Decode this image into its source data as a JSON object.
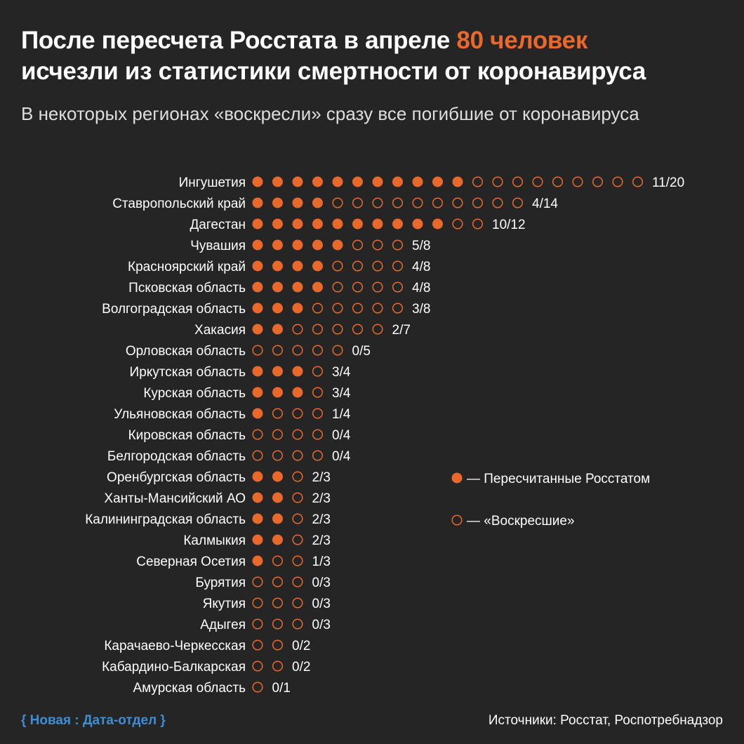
{
  "header": {
    "title_part1": "После пересчета Росстата в апреле ",
    "title_highlight": "80 человек",
    "title_part2": "исчезли из статистики смертности от коронавируса",
    "subtitle": "В некоторых регионах «воскресли» сразу все погибшие от коронавируса"
  },
  "colors": {
    "background": "#252525",
    "accent": "#e8692b",
    "text": "#ffffff",
    "brand": "#3c8fd6"
  },
  "chart_data": {
    "type": "dot-matrix",
    "rows": [
      {
        "region": "Ингушетия",
        "recounted": 11,
        "total": 20,
        "label": "11/20"
      },
      {
        "region": "Ставропольский край",
        "recounted": 4,
        "total": 14,
        "label": "4/14"
      },
      {
        "region": "Дагестан",
        "recounted": 10,
        "total": 12,
        "label": "10/12"
      },
      {
        "region": "Чувашия",
        "recounted": 5,
        "total": 8,
        "label": "5/8"
      },
      {
        "region": "Красноярский край",
        "recounted": 4,
        "total": 8,
        "label": "4/8"
      },
      {
        "region": "Псковская область",
        "recounted": 4,
        "total": 8,
        "label": "4/8"
      },
      {
        "region": "Волгоградская область",
        "recounted": 3,
        "total": 8,
        "label": "3/8"
      },
      {
        "region": "Хакасия",
        "recounted": 2,
        "total": 7,
        "label": "2/7"
      },
      {
        "region": "Орловская область",
        "recounted": 0,
        "total": 5,
        "label": "0/5"
      },
      {
        "region": "Иркутская область",
        "recounted": 3,
        "total": 4,
        "label": "3/4"
      },
      {
        "region": "Курская область",
        "recounted": 3,
        "total": 4,
        "label": "3/4"
      },
      {
        "region": "Ульяновская область",
        "recounted": 1,
        "total": 4,
        "label": "1/4"
      },
      {
        "region": "Кировская область",
        "recounted": 0,
        "total": 4,
        "label": "0/4"
      },
      {
        "region": "Белгородская область",
        "recounted": 0,
        "total": 4,
        "label": "0/4"
      },
      {
        "region": "Оренбургская область",
        "recounted": 2,
        "total": 3,
        "label": "2/3"
      },
      {
        "region": "Ханты-Мансийский АО",
        "recounted": 2,
        "total": 3,
        "label": "2/3"
      },
      {
        "region": "Калининградская область",
        "recounted": 2,
        "total": 3,
        "label": "2/3"
      },
      {
        "region": "Калмыкия",
        "recounted": 2,
        "total": 3,
        "label": "2/3"
      },
      {
        "region": "Северная Осетия",
        "recounted": 1,
        "total": 3,
        "label": "1/3"
      },
      {
        "region": "Бурятия",
        "recounted": 0,
        "total": 3,
        "label": "0/3"
      },
      {
        "region": "Якутия",
        "recounted": 0,
        "total": 3,
        "label": "0/3"
      },
      {
        "region": "Адыгея",
        "recounted": 0,
        "total": 3,
        "label": "0/3"
      },
      {
        "region": "Карачаево-Черкесская",
        "recounted": 0,
        "total": 2,
        "label": "0/2"
      },
      {
        "region": "Кабардино-Балкарская",
        "recounted": 0,
        "total": 2,
        "label": "0/2"
      },
      {
        "region": "Амурская область",
        "recounted": 0,
        "total": 1,
        "label": "0/1"
      }
    ],
    "legend": [
      {
        "marker": "filled",
        "label": "— Пересчитанные Росстатом"
      },
      {
        "marker": "hollow",
        "label": "— «Воскресшие»"
      }
    ],
    "legend_position": "right"
  },
  "footer": {
    "brand": "{ Новая : Дата-отдел }",
    "source": "Источники: Росстат, Роспотребнадзор"
  }
}
